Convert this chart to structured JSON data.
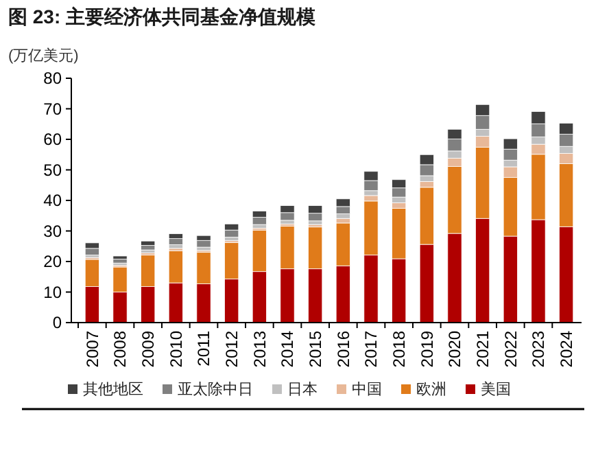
{
  "chart_data": {
    "type": "bar",
    "title": "图 23: 主要经济体共同基金净值规模",
    "ylabel": "(万亿美元)",
    "stacked": true,
    "legend": "bottom",
    "grid": false,
    "categories": [
      "2007",
      "2008",
      "2009",
      "2010",
      "2011",
      "2012",
      "2013",
      "2014",
      "2015",
      "2016",
      "2017",
      "2018",
      "2019",
      "2020",
      "2021",
      "2022",
      "2023",
      "2024"
    ],
    "ylim": [
      0,
      80
    ],
    "yticks": [
      0,
      10,
      20,
      30,
      40,
      50,
      60,
      70,
      80
    ],
    "series": [
      {
        "name": "美国",
        "color": "#b00000",
        "values": [
          11.8,
          10.0,
          11.8,
          13.0,
          12.7,
          14.3,
          16.7,
          17.6,
          17.6,
          18.6,
          22.1,
          20.9,
          25.6,
          29.2,
          34.1,
          28.3,
          33.7,
          31.4
        ]
      },
      {
        "name": "欧洲",
        "color": "#e07b1a",
        "values": [
          8.9,
          8.2,
          10.3,
          10.5,
          10.3,
          11.9,
          13.6,
          14.0,
          13.7,
          14.0,
          17.7,
          16.5,
          18.7,
          21.9,
          23.3,
          19.2,
          21.4,
          20.6
        ]
      },
      {
        "name": "中国",
        "color": "#e8b898",
        "values": [
          0.6,
          0.5,
          0.7,
          0.8,
          0.6,
          0.6,
          0.6,
          0.7,
          0.8,
          1.5,
          1.8,
          1.8,
          1.9,
          2.7,
          3.6,
          3.5,
          3.3,
          3.4
        ]
      },
      {
        "name": "日本",
        "color": "#c0c0c0",
        "values": [
          0.8,
          0.8,
          1.0,
          1.2,
          1.1,
          1.2,
          1.2,
          1.2,
          1.2,
          1.5,
          1.6,
          1.9,
          1.9,
          2.4,
          2.3,
          2.2,
          2.4,
          2.3
        ]
      },
      {
        "name": "亚太除中日",
        "color": "#808080",
        "values": [
          2.2,
          1.3,
          1.5,
          2.0,
          2.2,
          2.3,
          2.4,
          2.5,
          2.5,
          2.4,
          3.3,
          3.0,
          3.6,
          3.9,
          4.5,
          3.6,
          4.3,
          4.0
        ]
      },
      {
        "name": "其他地区",
        "color": "#404040",
        "values": [
          1.8,
          1.0,
          1.4,
          1.6,
          1.6,
          2.0,
          2.0,
          2.3,
          2.5,
          2.5,
          3.0,
          2.7,
          3.3,
          3.2,
          3.6,
          3.4,
          4.0,
          3.6
        ]
      }
    ]
  }
}
